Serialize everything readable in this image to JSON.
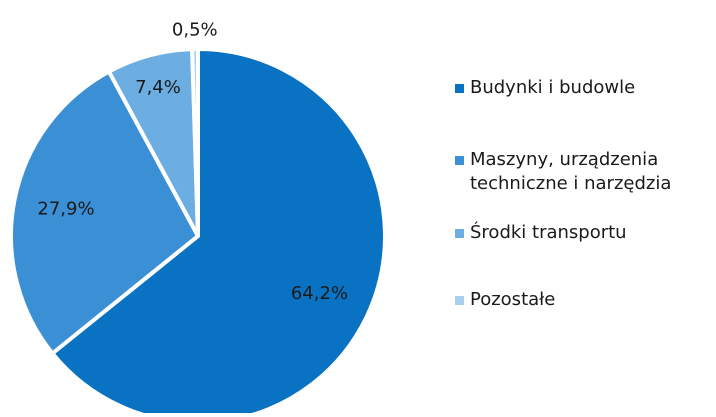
{
  "chart_data": {
    "type": "pie",
    "categories": [
      "Budynki i budowle",
      "Maszyny, urządzenia techniczne i narzędzia",
      "Środki transportu",
      "Pozostałe"
    ],
    "values": [
      64.2,
      27.9,
      7.4,
      0.5
    ],
    "value_labels": [
      "64,2%",
      "27,9%",
      "7,4%",
      "0,5%"
    ],
    "colors": [
      "#0a72c2",
      "#3b8fd4",
      "#6caee1",
      "#a9cfee"
    ],
    "legend": "right"
  }
}
